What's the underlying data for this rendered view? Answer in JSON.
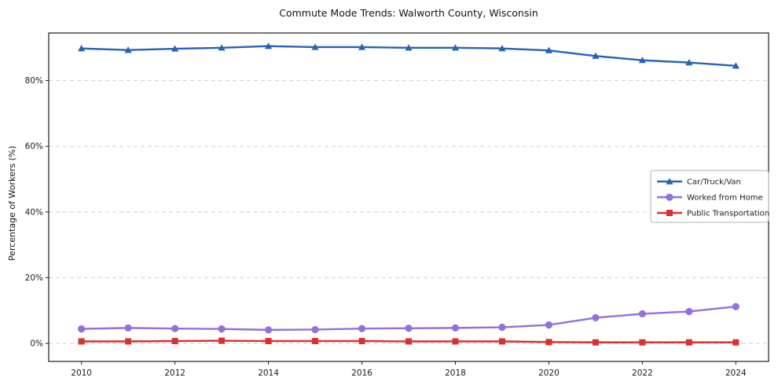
{
  "chart_data": {
    "type": "line",
    "title": "Commute Mode Trends: Walworth County, Wisconsin",
    "xlabel": "",
    "ylabel": "Percentage of Workers (%)",
    "x": [
      2010,
      2011,
      2012,
      2013,
      2014,
      2015,
      2016,
      2017,
      2018,
      2019,
      2020,
      2021,
      2022,
      2023,
      2024
    ],
    "xticks": [
      2010,
      2012,
      2014,
      2016,
      2018,
      2020,
      2022,
      2024
    ],
    "yticks": [
      0,
      20,
      40,
      60,
      80
    ],
    "ytick_suffix": "%",
    "ylim": [
      -5.5,
      94.5
    ],
    "x_range": [
      2009.3,
      2024.7
    ],
    "grid": "horizontal-dashed",
    "legend_position": "center-right",
    "series": [
      {
        "id": "car-truck-van",
        "name": "Car/Truck/Van",
        "color": "#2563b6",
        "marker": "triangle",
        "values": [
          89.8,
          89.3,
          89.7,
          90.0,
          90.5,
          90.2,
          90.2,
          90.0,
          90.0,
          89.8,
          89.2,
          87.5,
          86.2,
          85.5,
          84.5
        ]
      },
      {
        "id": "worked-from-home",
        "name": "Worked from Home",
        "color": "#9370db",
        "marker": "circle",
        "values": [
          4.4,
          4.7,
          4.5,
          4.4,
          4.1,
          4.2,
          4.5,
          4.6,
          4.7,
          4.9,
          5.6,
          7.8,
          9.0,
          9.7,
          11.2
        ]
      },
      {
        "id": "public-transportation",
        "name": "Public Transportation",
        "color": "#d93030",
        "marker": "square",
        "values": [
          0.6,
          0.6,
          0.7,
          0.8,
          0.7,
          0.7,
          0.7,
          0.6,
          0.6,
          0.6,
          0.4,
          0.3,
          0.3,
          0.3,
          0.3
        ]
      }
    ]
  }
}
